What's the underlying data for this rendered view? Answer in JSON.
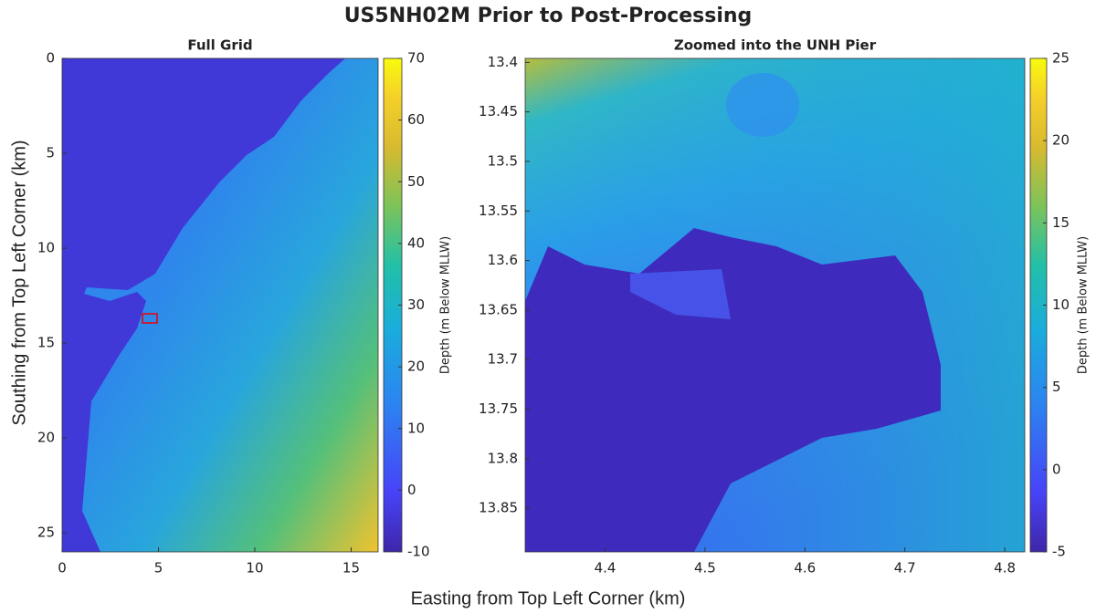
{
  "title": "US5NH02M Prior to Post-Processing",
  "x_label": "Easting from Top Left Corner (km)",
  "y_label": "Southing from Top Left Corner (km)",
  "chart_data": [
    {
      "type": "heatmap",
      "title": "Full Grid",
      "colormap": "parula",
      "xlim": [
        0,
        16.4
      ],
      "xticks": [
        0,
        5,
        10,
        15
      ],
      "ylim": [
        0,
        26
      ],
      "yticks": [
        0,
        5,
        10,
        15,
        20,
        25
      ],
      "y_reversed": true,
      "colorbar": {
        "label": "Depth (m Below MLLW)",
        "lim": [
          -10,
          70
        ],
        "ticks": [
          -10,
          0,
          10,
          20,
          30,
          40,
          50,
          60,
          70
        ]
      }
    },
    {
      "type": "heatmap",
      "title": "Zoomed into the UNH Pier",
      "colormap": "parula",
      "xlim": [
        4.32,
        4.82
      ],
      "xticks": [
        4.4,
        4.5,
        4.6,
        4.7,
        4.8
      ],
      "ylim": [
        13.396,
        13.894
      ],
      "yticks": [
        13.4,
        13.45,
        13.5,
        13.55,
        13.6,
        13.65,
        13.7,
        13.75,
        13.8,
        13.85
      ],
      "y_reversed": true,
      "colorbar": {
        "label": "Depth (m Below MLLW)",
        "lim": [
          -5,
          25
        ],
        "ticks": [
          -5,
          0,
          5,
          10,
          15,
          20,
          25
        ]
      }
    }
  ]
}
